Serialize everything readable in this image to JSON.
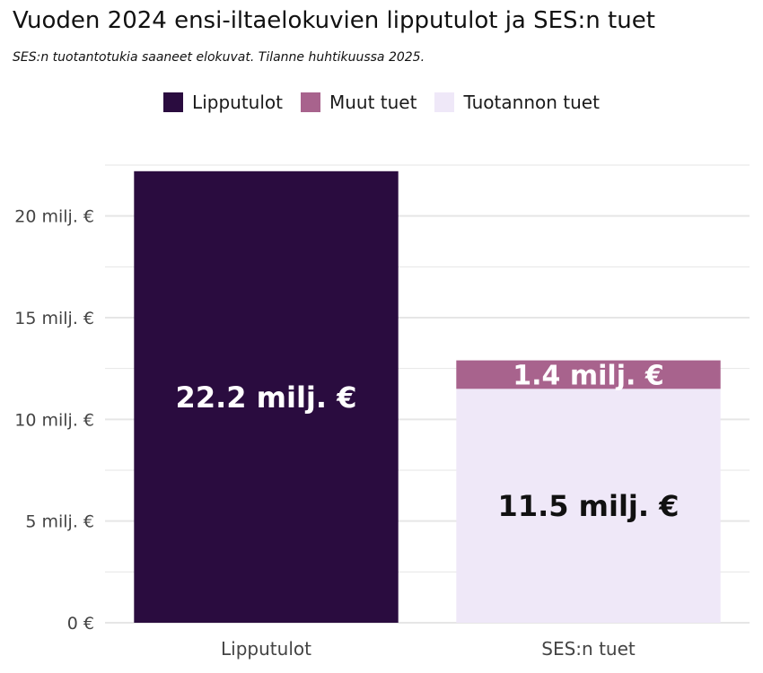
{
  "title": "Vuoden 2024 ensi-iltaelokuvien lipputulot ja SES:n tuet",
  "subtitle": "SES:n tuotantotukia saaneet elokuvat. Tilanne huhtikuussa 2025.",
  "colors": {
    "lipputulot": "#2a0c3f",
    "muut_tuet": "#a8638d",
    "tuotannon_tuet": "#efe8f8",
    "grid": "#e6e6e6"
  },
  "legend": [
    {
      "label": "Lipputulot",
      "color": "#2a0c3f"
    },
    {
      "label": "Muut tuet",
      "color": "#a8638d"
    },
    {
      "label": "Tuotannon tuet",
      "color": "#efe8f8"
    }
  ],
  "chart_data": {
    "type": "bar",
    "stacked": true,
    "categories": [
      "Lipputulot",
      "SES:n tuet"
    ],
    "series": [
      {
        "name": "Lipputulot",
        "values": [
          22.2,
          0
        ],
        "color": "#2a0c3f",
        "label_color": "#ffffff"
      },
      {
        "name": "Tuotannon tuet",
        "values": [
          0,
          11.5
        ],
        "color": "#efe8f8",
        "label_color": "#111111"
      },
      {
        "name": "Muut tuet",
        "values": [
          0,
          1.4
        ],
        "color": "#a8638d",
        "label_color": "#ffffff"
      }
    ],
    "data_labels": [
      {
        "category": "Lipputulot",
        "series": "Lipputulot",
        "text": "22.2 milj. €"
      },
      {
        "category": "SES:n tuet",
        "series": "Tuotannon tuet",
        "text": "11.5 milj. €"
      },
      {
        "category": "SES:n tuet",
        "series": "Muut tuet",
        "text": "1.4 milj. €"
      }
    ],
    "y_ticks": [
      {
        "value": 0,
        "label": "0 €"
      },
      {
        "value": 5,
        "label": "5 milj. €"
      },
      {
        "value": 10,
        "label": "10 milj. €"
      },
      {
        "value": 15,
        "label": "15 milj. €"
      },
      {
        "value": 20,
        "label": "20 milj. €"
      }
    ],
    "ylim": [
      0,
      24
    ],
    "grid": true,
    "legend_position": "top"
  }
}
